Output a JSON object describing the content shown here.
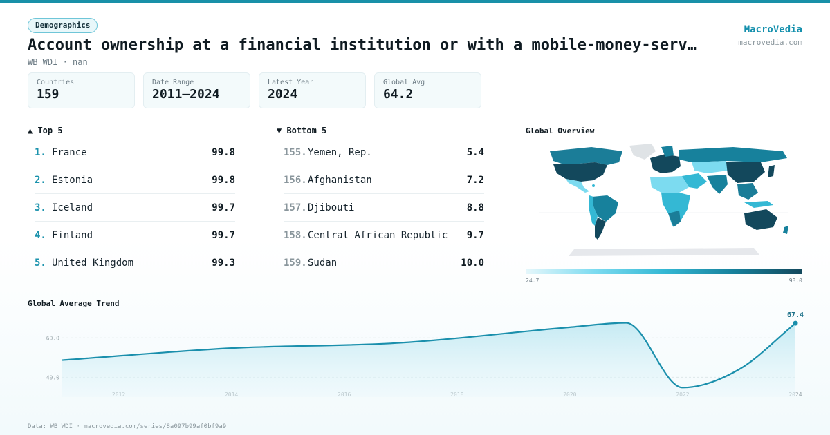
{
  "category_badge": "Demographics",
  "title": "Account ownership at a financial institution or with a mobile-money-serv…",
  "subtitle": "WB WDI · nan",
  "brand": {
    "name": "MacroVedia",
    "url": "macrovedia.com"
  },
  "stats": [
    {
      "label": "Countries",
      "value": "159"
    },
    {
      "label": "Date Range",
      "value": "2011–2024"
    },
    {
      "label": "Latest Year",
      "value": "2024"
    },
    {
      "label": "Global Avg",
      "value": "64.2"
    }
  ],
  "top5": {
    "heading": "▲ Top 5",
    "items": [
      {
        "rank": "1.",
        "name": "France",
        "value": "99.8"
      },
      {
        "rank": "2.",
        "name": "Estonia",
        "value": "99.8"
      },
      {
        "rank": "3.",
        "name": "Iceland",
        "value": "99.7"
      },
      {
        "rank": "4.",
        "name": "Finland",
        "value": "99.7"
      },
      {
        "rank": "5.",
        "name": "United Kingdom",
        "value": "99.3"
      }
    ]
  },
  "bottom5": {
    "heading": "▼ Bottom 5",
    "items": [
      {
        "rank": "155.",
        "name": "Yemen, Rep.",
        "value": "5.4"
      },
      {
        "rank": "156.",
        "name": "Afghanistan",
        "value": "7.2"
      },
      {
        "rank": "157.",
        "name": "Djibouti",
        "value": "8.8"
      },
      {
        "rank": "158.",
        "name": "Central African Republic",
        "value": "9.7"
      },
      {
        "rank": "159.",
        "name": "Sudan",
        "value": "10.0"
      }
    ]
  },
  "map": {
    "title": "Global Overview",
    "legend_min": "24.7",
    "legend_max": "98.0"
  },
  "trend": {
    "title": "Global Average Trend"
  },
  "footer": "Data: WB WDI · macrovedia.com/series/8a097b99af0bf9a9",
  "colors": {
    "accent": "#1590ad",
    "line": "#1a8fac",
    "area": "#d8f1f7"
  },
  "chart_data": {
    "type": "area",
    "x": [
      2011,
      2014,
      2017,
      2020,
      2021,
      2022,
      2023,
      2024
    ],
    "values": [
      48.7,
      54.8,
      57.5,
      65.4,
      67.6,
      34.8,
      44.0,
      67.4
    ],
    "xticks": [
      "2012",
      "2014",
      "2016",
      "2018",
      "2020",
      "2022",
      "2024"
    ],
    "yticks": [
      "40.0",
      "60.0"
    ],
    "last_label": "67.4",
    "ylim": [
      30,
      72
    ],
    "xlim": [
      2011,
      2024
    ],
    "grid": true
  }
}
